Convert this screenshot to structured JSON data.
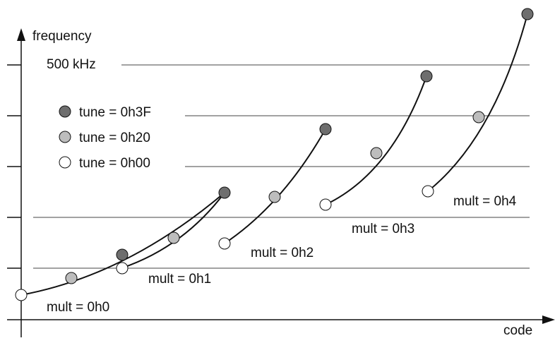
{
  "axes": {
    "y_label": "frequency",
    "x_label": "code",
    "y_tick_label": "500 kHz"
  },
  "legend": [
    {
      "label": "tune = 0h3F",
      "fill": "#6e6e6e"
    },
    {
      "label": "tune = 0h20",
      "fill": "#bdbdbd"
    },
    {
      "label": "tune = 0h00",
      "fill": "#ffffff"
    }
  ],
  "curves": [
    {
      "label": "mult = 0h0"
    },
    {
      "label": "mult = 0h1"
    },
    {
      "label": "mult = 0h2"
    },
    {
      "label": "mult = 0h3"
    },
    {
      "label": "mult = 0h4"
    }
  ],
  "colors": {
    "line": "#111111",
    "gridline": "#444444",
    "tune_3F": "#6e6e6e",
    "tune_20": "#bdbdbd",
    "tune_00": "#ffffff"
  }
}
